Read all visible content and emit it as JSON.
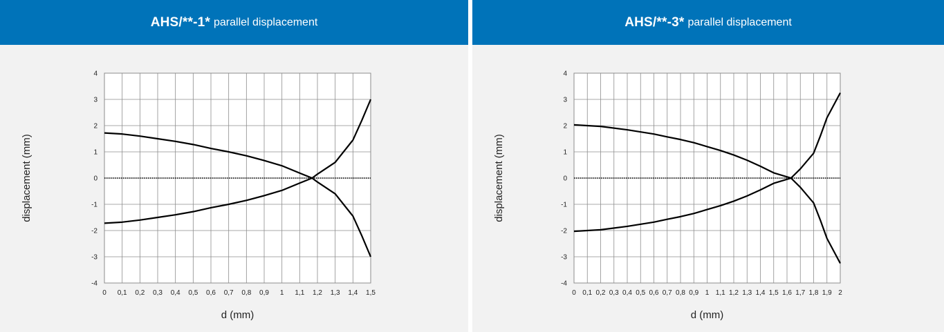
{
  "colors": {
    "header_bg": "#0073b9",
    "header_text": "#ffffff",
    "panel_bg": "#f2f2f2",
    "grid": "#8c8c8c",
    "curve": "#000000"
  },
  "charts": [
    {
      "header_main": "AHS/**-1*",
      "header_sub": "parallel displacement"
    },
    {
      "header_main": "AHS/**-3*",
      "header_sub": "parallel displacement"
    }
  ],
  "chart_data": [
    {
      "type": "line",
      "title": "AHS/**-1* parallel displacement",
      "xlabel": "d (mm)",
      "ylabel": "displacement (mm)",
      "xlim": [
        0,
        1.5
      ],
      "ylim": [
        -4,
        4
      ],
      "xticks": [
        "0",
        "0,1",
        "0,2",
        "0,3",
        "0,4",
        "0,5",
        "0,6",
        "0,7",
        "0,8",
        "0,9",
        "1",
        "1,1",
        "1,2",
        "1,3",
        "1,4",
        "1,5"
      ],
      "yticks": [
        "-4",
        "-3",
        "-2",
        "-1",
        "0",
        "1",
        "2",
        "3",
        "4"
      ],
      "grid": true,
      "series": [
        {
          "x": [
            0,
            0.1,
            0.2,
            0.3,
            0.4,
            0.5,
            0.6,
            0.7,
            0.8,
            0.9,
            1.0,
            1.1,
            1.17,
            1.2,
            1.3,
            1.4,
            1.45,
            1.5
          ],
          "values": [
            1.72,
            1.68,
            1.6,
            1.5,
            1.4,
            1.28,
            1.13,
            1.0,
            0.85,
            0.67,
            0.47,
            0.19,
            0.0,
            -0.15,
            -0.6,
            -1.45,
            -2.2,
            -3.0
          ]
        },
        {
          "x": [
            0,
            0.1,
            0.2,
            0.3,
            0.4,
            0.5,
            0.6,
            0.7,
            0.8,
            0.9,
            1.0,
            1.1,
            1.17,
            1.2,
            1.3,
            1.4,
            1.45,
            1.5
          ],
          "values": [
            -1.72,
            -1.68,
            -1.6,
            -1.5,
            -1.4,
            -1.28,
            -1.13,
            -1.0,
            -0.85,
            -0.67,
            -0.47,
            -0.19,
            0.0,
            0.15,
            0.6,
            1.45,
            2.2,
            3.0
          ]
        }
      ]
    },
    {
      "type": "line",
      "title": "AHS/**-3* parallel displacement",
      "xlabel": "d (mm)",
      "ylabel": "displacement (mm)",
      "xlim": [
        0,
        2
      ],
      "ylim": [
        -4,
        4
      ],
      "xticks": [
        "0",
        "0,1",
        "0,2",
        "0,3",
        "0,4",
        "0,5",
        "0,6",
        "0,7",
        "0,8",
        "0,9",
        "1",
        "1,1",
        "1,2",
        "1,3",
        "1,4",
        "1,5",
        "1,6",
        "1,7",
        "1,8",
        "1,9",
        "2"
      ],
      "yticks": [
        "-4",
        "-3",
        "-2",
        "-1",
        "0",
        "1",
        "2",
        "3",
        "4"
      ],
      "grid": true,
      "series": [
        {
          "x": [
            0,
            0.2,
            0.4,
            0.6,
            0.7,
            0.8,
            0.9,
            1.0,
            1.1,
            1.2,
            1.3,
            1.4,
            1.5,
            1.63,
            1.7,
            1.8,
            1.85,
            1.9,
            2.0
          ],
          "values": [
            2.03,
            1.97,
            1.84,
            1.68,
            1.57,
            1.47,
            1.35,
            1.2,
            1.05,
            0.88,
            0.68,
            0.45,
            0.2,
            0.0,
            -0.35,
            -0.95,
            -1.6,
            -2.3,
            -3.25
          ]
        },
        {
          "x": [
            0,
            0.2,
            0.4,
            0.6,
            0.7,
            0.8,
            0.9,
            1.0,
            1.1,
            1.2,
            1.3,
            1.4,
            1.5,
            1.63,
            1.7,
            1.8,
            1.85,
            1.9,
            2.0
          ],
          "values": [
            -2.03,
            -1.97,
            -1.84,
            -1.68,
            -1.57,
            -1.47,
            -1.35,
            -1.2,
            -1.05,
            -0.88,
            -0.68,
            -0.45,
            -0.2,
            0.0,
            0.35,
            0.95,
            1.6,
            2.3,
            3.25
          ]
        }
      ]
    }
  ]
}
